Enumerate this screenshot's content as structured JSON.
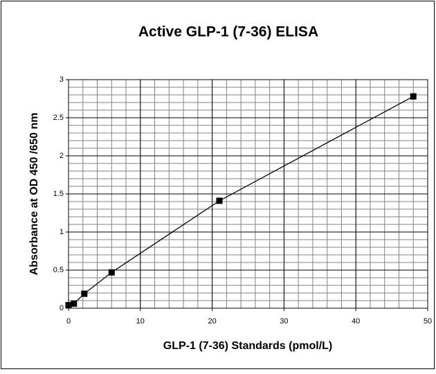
{
  "chart_data": {
    "type": "scatter",
    "title": "Active GLP-1 (7-36) ELISA",
    "x_label": "GLP-1 (7-36) Standards (pmol/L)",
    "y_label": "Absorbance at OD 450 /650 nm",
    "series": [
      {
        "color": "#000000",
        "x": [
          0,
          0.75,
          2.2,
          6,
          21,
          48
        ],
        "values": [
          0.04,
          0.06,
          0.19,
          0.47,
          1.41,
          2.78
        ]
      }
    ],
    "xlim": [
      0,
      50
    ],
    "xticks": [
      0,
      10,
      20,
      30,
      40,
      50
    ],
    "ylim": [
      0,
      3
    ],
    "yticks": [
      0,
      0.5,
      1,
      1.5,
      2,
      2.5,
      3
    ],
    "grid": true,
    "minor_grid": {
      "x": 2,
      "y": 0.1
    },
    "line": true
  }
}
